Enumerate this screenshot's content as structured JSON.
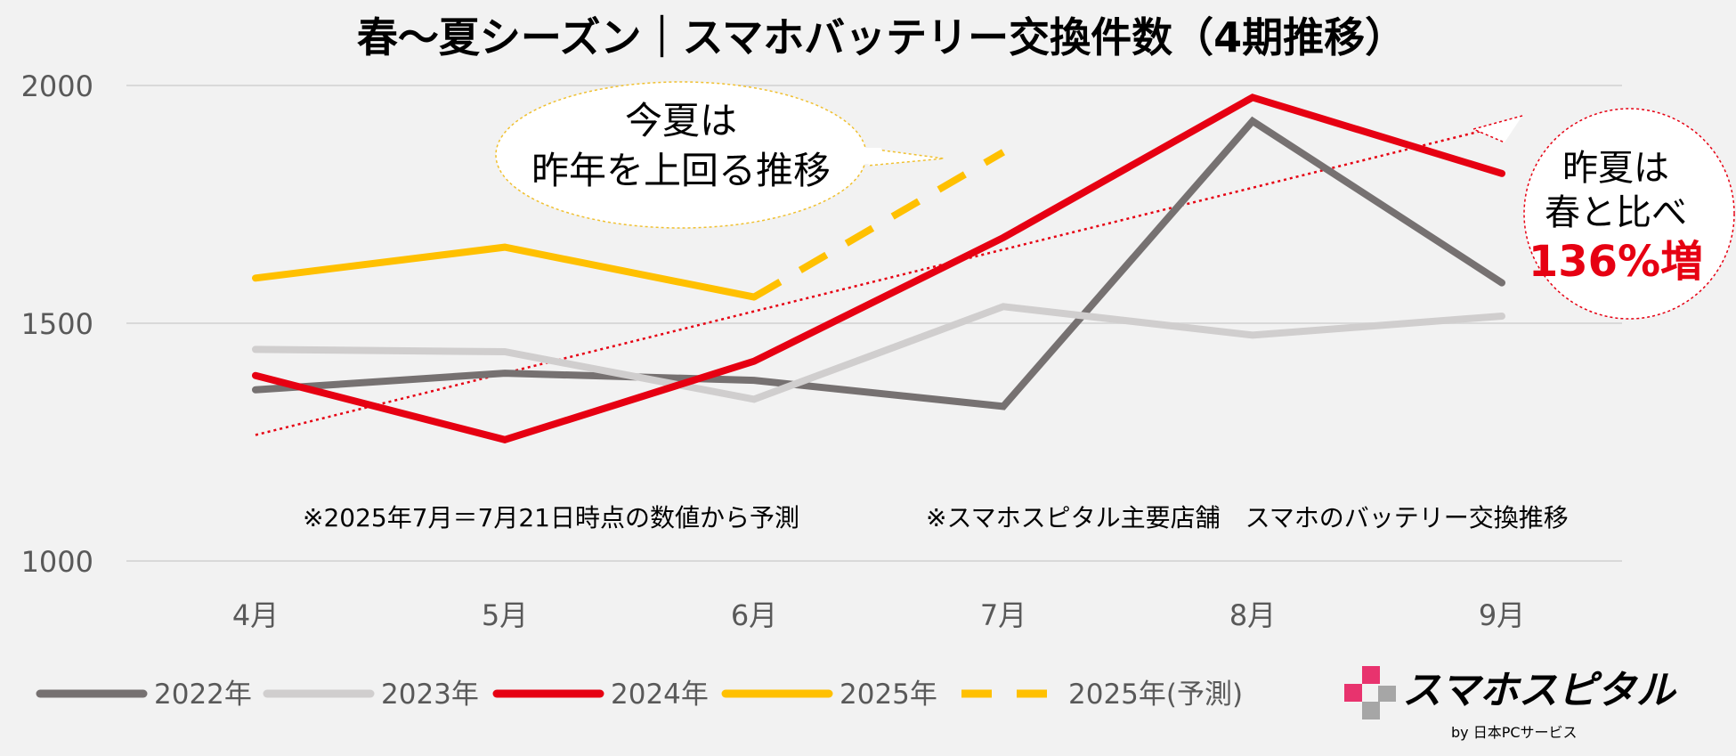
{
  "chart_data": {
    "type": "line",
    "title": "春～夏シーズン｜スマホバッテリー交換件数（4期推移）",
    "xlabel": "",
    "ylabel": "",
    "categories": [
      "4月",
      "5月",
      "6月",
      "7月",
      "8月",
      "9月"
    ],
    "ylim": [
      1000,
      2000
    ],
    "yticks": [
      1000,
      1500,
      2000
    ],
    "grid": true,
    "legend": "bottom",
    "series": [
      {
        "name": "2022年",
        "color": "#767171",
        "style": "solid",
        "values": [
          1360,
          1395,
          1380,
          1325,
          1925,
          1585
        ]
      },
      {
        "name": "2023年",
        "color": "#d0cece",
        "style": "solid",
        "values": [
          1445,
          1440,
          1340,
          1535,
          1475,
          1515
        ]
      },
      {
        "name": "2024年",
        "color": "#e60012",
        "style": "solid",
        "values": [
          1390,
          1255,
          1420,
          1680,
          1975,
          1815
        ]
      },
      {
        "name": "2025年",
        "color": "#ffc000",
        "style": "solid",
        "values": [
          1595,
          1660,
          1555,
          null,
          null,
          null
        ]
      },
      {
        "name": "2025年(予測)",
        "color": "#ffc000",
        "style": "dashed",
        "values": [
          null,
          null,
          1555,
          1860,
          null,
          null
        ]
      }
    ],
    "trendline": {
      "color": "#e60012",
      "style": "dotted",
      "from": 1265,
      "to": 1915
    },
    "annotations": {
      "callout_left_line1": "今夏は",
      "callout_left_line2": "昨年を上回る推移",
      "callout_right_line1": "昨夏は",
      "callout_right_line2": "春と比べ",
      "callout_right_highlight": "136%増",
      "note_left": "※2025年7月＝7月21日時点の数値から予測",
      "note_right": "※スマホスピタル主要店舗　スマホのバッテリー交換推移"
    }
  },
  "logo": {
    "name": "スマホスピタル",
    "sub": "by  日本PCサービス",
    "colors": {
      "pink": "#e8336e",
      "gray": "#a6a6a6"
    }
  },
  "colors": {
    "background": "#f2f2f2",
    "grid": "#d9d9d9",
    "axis_text": "#595959",
    "accent_red": "#e60012"
  }
}
